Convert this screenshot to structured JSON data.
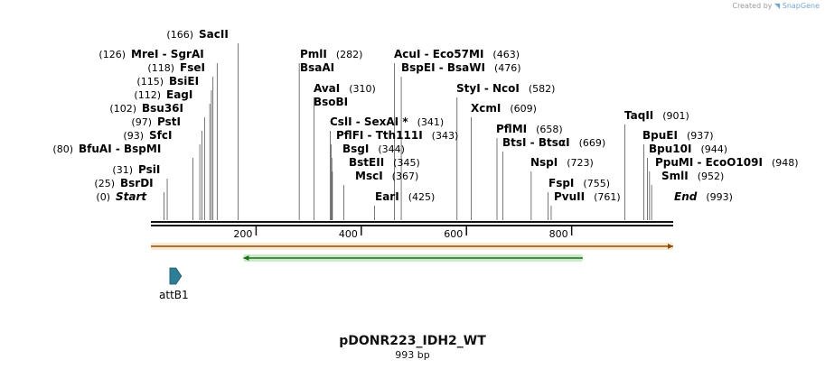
{
  "credit": {
    "text": "Created by",
    "brand": "SnapGene"
  },
  "plasmid": {
    "name": "pDONR223_IDH2_WT",
    "length_label": "993 bp",
    "length_bp": 993
  },
  "ticks": [
    200,
    400,
    600,
    800
  ],
  "sites": [
    {
      "name": "Start",
      "pos": 0,
      "italic": true
    },
    {
      "name": "BsrDI",
      "pos": 25
    },
    {
      "name": "PsiI",
      "pos": 31
    },
    {
      "name": "BfuAI - BspMI",
      "pos": 80
    },
    {
      "name": "SfcI",
      "pos": 93
    },
    {
      "name": "PstI",
      "pos": 97
    },
    {
      "name": "Bsu36I",
      "pos": 102
    },
    {
      "name": "EagI",
      "pos": 112
    },
    {
      "name": "BsiEI",
      "pos": 115
    },
    {
      "name": "FseI",
      "pos": 118
    },
    {
      "name": "MreI - SgrAI",
      "pos": 126
    },
    {
      "name": "SacII",
      "pos": 166
    },
    {
      "name": "PmlI",
      "pos": 282
    },
    {
      "name": "BsaAI",
      "pos": 282,
      "nopos": true
    },
    {
      "name": "AvaI",
      "pos": 310
    },
    {
      "name": "BsoBI",
      "pos": 310,
      "nopos": true
    },
    {
      "name": "CslI - SexAI *",
      "pos": 341
    },
    {
      "name": "PflFI - Tth111I",
      "pos": 343
    },
    {
      "name": "BsgI",
      "pos": 344
    },
    {
      "name": "BstEII",
      "pos": 345
    },
    {
      "name": "MscI",
      "pos": 367
    },
    {
      "name": "EarI",
      "pos": 425
    },
    {
      "name": "AcuI - Eco57MI",
      "pos": 463
    },
    {
      "name": "BspEI - BsaWI",
      "pos": 476
    },
    {
      "name": "StyI - NcoI",
      "pos": 582
    },
    {
      "name": "XcmI",
      "pos": 609
    },
    {
      "name": "PflMI",
      "pos": 658
    },
    {
      "name": "BtsI - BtsαI",
      "pos": 669
    },
    {
      "name": "NspI",
      "pos": 723
    },
    {
      "name": "FspI",
      "pos": 755
    },
    {
      "name": "PvuII",
      "pos": 761
    },
    {
      "name": "TaqII",
      "pos": 901
    },
    {
      "name": "BpuEI",
      "pos": 937
    },
    {
      "name": "Bpu10I",
      "pos": 944
    },
    {
      "name": "PpuMI - EcoO109I",
      "pos": 948
    },
    {
      "name": "SmlI",
      "pos": 952
    },
    {
      "name": "End",
      "pos": 993,
      "italic": true
    }
  ],
  "features": [
    {
      "name": "orange-feature",
      "start": 0,
      "end": 993,
      "color": "#f2a93b",
      "direction": "forward",
      "type": "bar"
    },
    {
      "name": "green-feature",
      "start": 176,
      "end": 821,
      "color": "#35a82b",
      "direction": "reverse",
      "type": "bar"
    },
    {
      "name": "attB1",
      "label": "attB1",
      "start": 36,
      "end": 58,
      "color": "#2e7f95",
      "direction": "forward",
      "type": "arrow"
    }
  ],
  "colors": {
    "backbone": "#111111",
    "site_line": "#555555"
  }
}
